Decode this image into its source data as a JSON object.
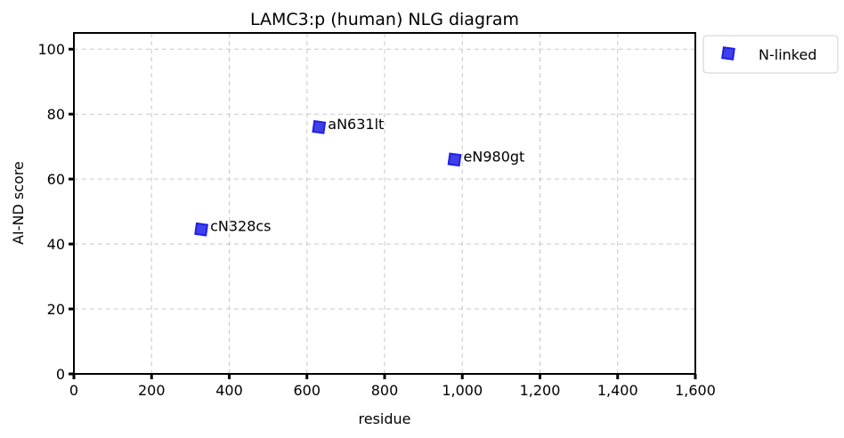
{
  "chart_data": {
    "type": "scatter",
    "title": "LAMC3:p (human) NLG diagram",
    "xlabel": "residue",
    "ylabel": "AI-ND score",
    "xlim": [
      0,
      1600
    ],
    "ylim": [
      0,
      105
    ],
    "xticks": [
      0,
      200,
      400,
      600,
      800,
      1000,
      1200,
      1400,
      1600
    ],
    "xtick_labels": [
      "0",
      "200",
      "400",
      "600",
      "800",
      "1,000",
      "1,200",
      "1,400",
      "1,600"
    ],
    "yticks": [
      0,
      20,
      40,
      60,
      80,
      100
    ],
    "ytick_labels": [
      "0",
      "20",
      "40",
      "60",
      "80",
      "100"
    ],
    "grid": true,
    "legend_placement": "outside-top-right",
    "series": [
      {
        "name": "N-linked",
        "color": "#1f1fe6",
        "marker": "square",
        "points": [
          {
            "x": 328,
            "y": 44.5,
            "label": "cN328cs"
          },
          {
            "x": 631,
            "y": 76,
            "label": "aN631lt"
          },
          {
            "x": 980,
            "y": 66,
            "label": "eN980gt"
          }
        ]
      }
    ]
  }
}
